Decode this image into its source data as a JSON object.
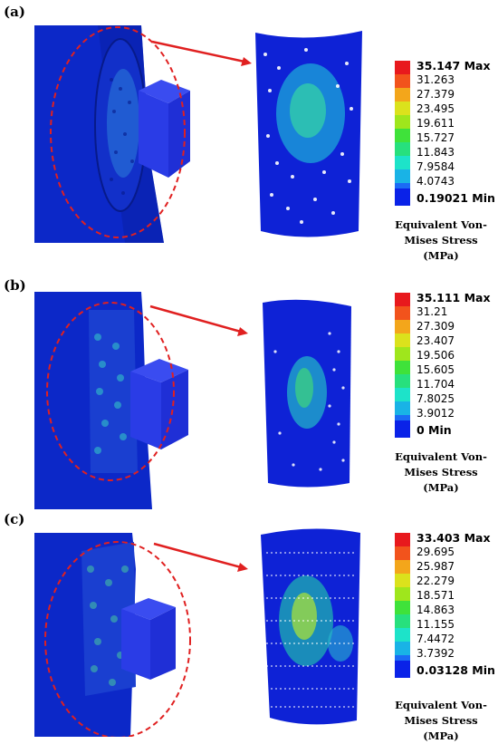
{
  "palette": [
    "#0a22e8",
    "#1b6bf5",
    "#19b3e6",
    "#1de3c9",
    "#27e07d",
    "#3fe23a",
    "#9fe61c",
    "#dbe21c",
    "#f3a61b",
    "#f2531c",
    "#e8191d"
  ],
  "panels": [
    {
      "label": "(a)",
      "legend": {
        "ticks": [
          "35.147 Max",
          "31.263",
          "27.379",
          "23.495",
          "19.611",
          "15.727",
          "11.843",
          "7.9584",
          "4.0743",
          "0.19021 Min"
        ]
      },
      "title_line1": "Equivalent Von-",
      "title_line2": "Mises Stress (MPa)"
    },
    {
      "label": "(b)",
      "legend": {
        "ticks": [
          "35.111 Max",
          "31.21",
          "27.309",
          "23.407",
          "19.506",
          "15.605",
          "11.704",
          "7.8025",
          "3.9012",
          "0 Min"
        ]
      },
      "title_line1": "Equivalent Von-",
      "title_line2": "Mises Stress (MPa)"
    },
    {
      "label": "(c)",
      "legend": {
        "ticks": [
          "33.403 Max",
          "29.695",
          "25.987",
          "22.279",
          "18.571",
          "14.863",
          "11.155",
          "7.4472",
          "3.7392",
          "0.03128 Min"
        ]
      },
      "title_line1": "Equivalent Von-",
      "title_line2": "Mises Stress (MPa)"
    }
  ]
}
